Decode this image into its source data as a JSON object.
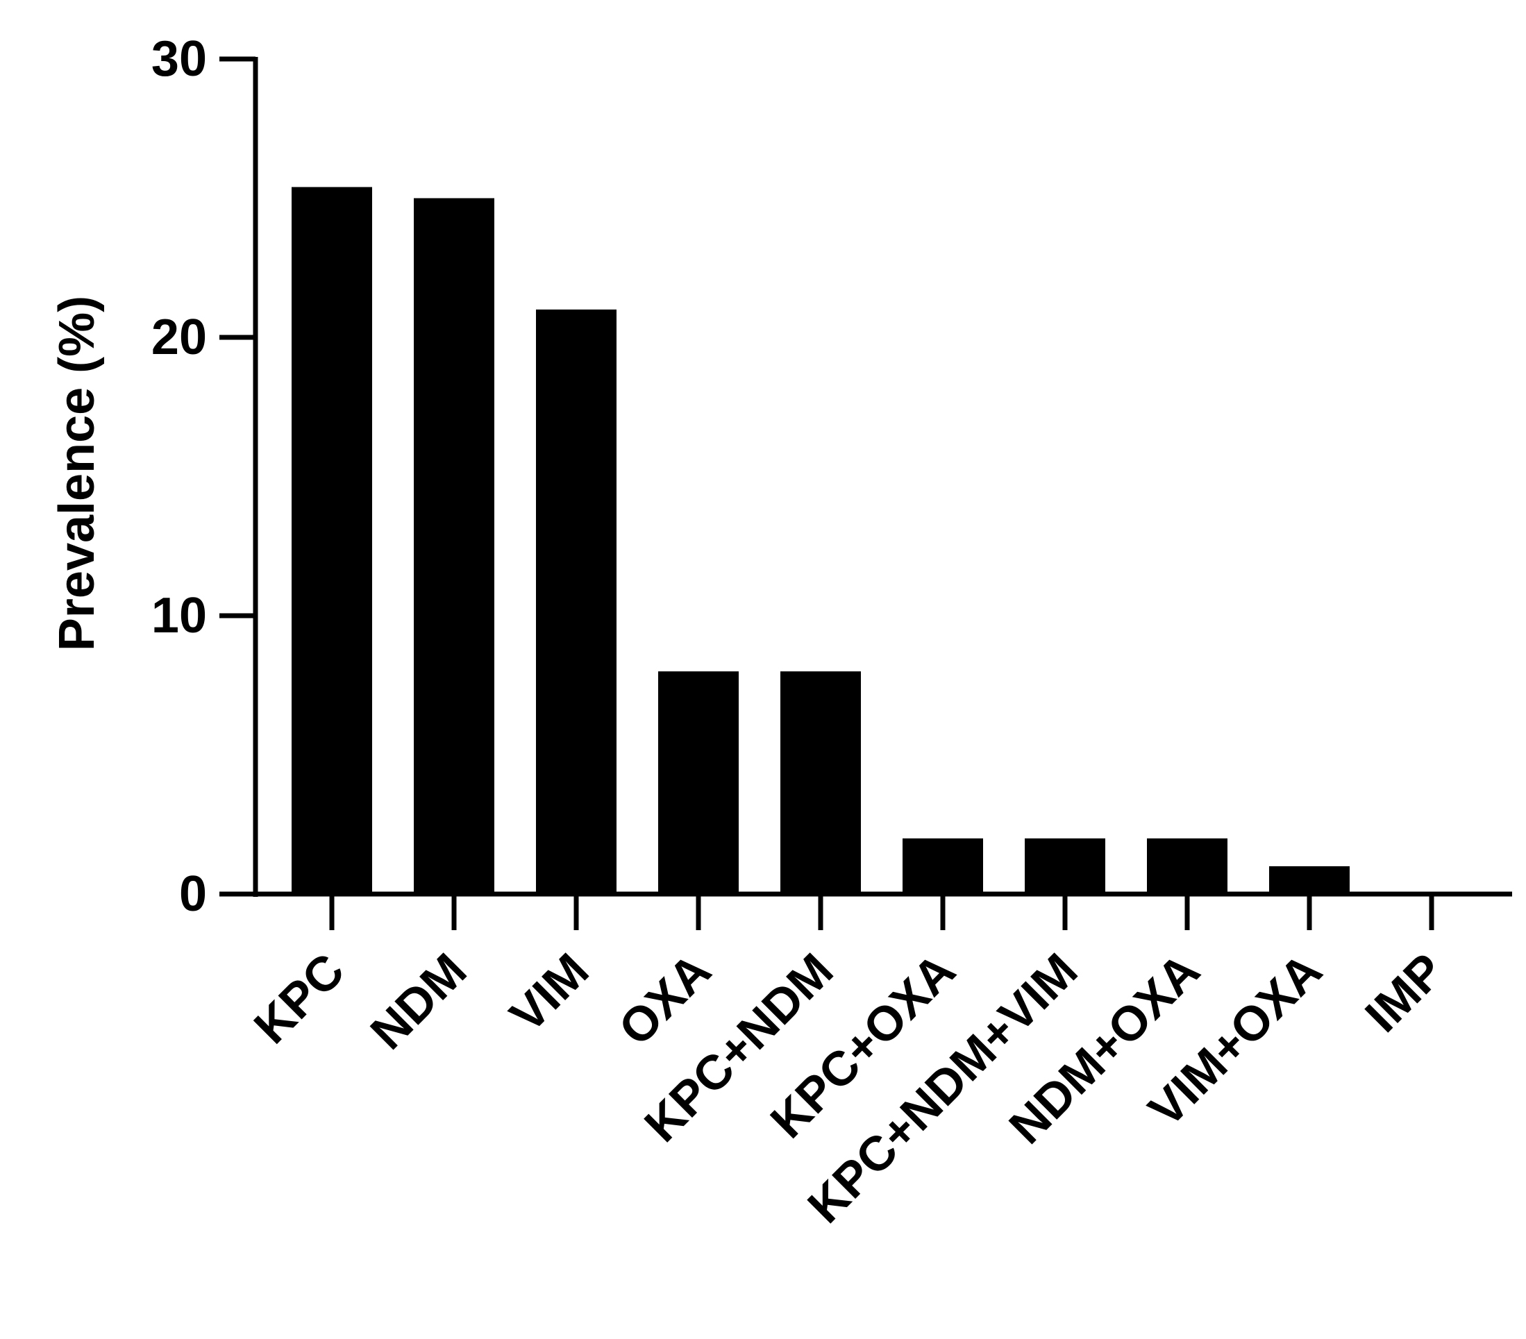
{
  "chart_data": {
    "type": "bar",
    "title": "",
    "xlabel": "",
    "ylabel": "Prevalence (%)",
    "categories": [
      "KPC",
      "NDM",
      "VIM",
      "OXA",
      "KPC+NDM",
      "KPC+OXA",
      "KPC+NDM+VIM",
      "NDM+OXA",
      "VIM+OXA",
      "IMP"
    ],
    "values": [
      25.4,
      25.0,
      21.0,
      8.0,
      8.0,
      2.0,
      2.0,
      2.0,
      1.0,
      0
    ],
    "ylim": [
      0,
      30
    ],
    "yticks": [
      0,
      10,
      20,
      30
    ],
    "grid": false,
    "legend": "none",
    "colors": {
      "bar": "#000000",
      "axis": "#000000"
    }
  }
}
